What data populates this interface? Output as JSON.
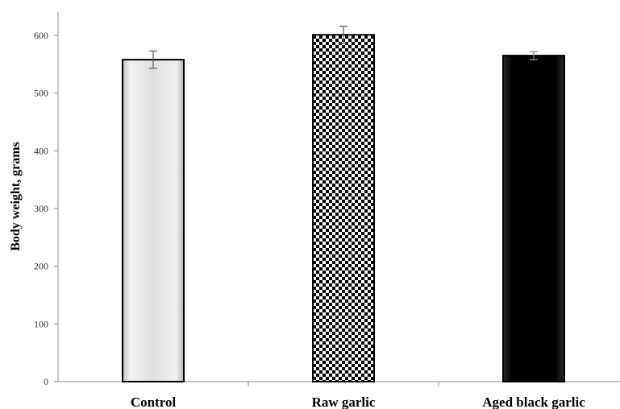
{
  "chart_data": {
    "type": "bar",
    "ylabel": "Body weight, grams",
    "xlabel": "",
    "ylim": [
      0,
      600
    ],
    "yticks": [
      0,
      100,
      200,
      300,
      400,
      500,
      600
    ],
    "categories": [
      "Control",
      "Raw garlic",
      "Aged black garlic"
    ],
    "values": [
      558,
      601,
      565
    ],
    "errors": [
      15,
      15,
      7
    ],
    "fills": [
      "light-gray-gradient",
      "black-white-checkerboard",
      "black-gradient"
    ],
    "grid": false
  }
}
